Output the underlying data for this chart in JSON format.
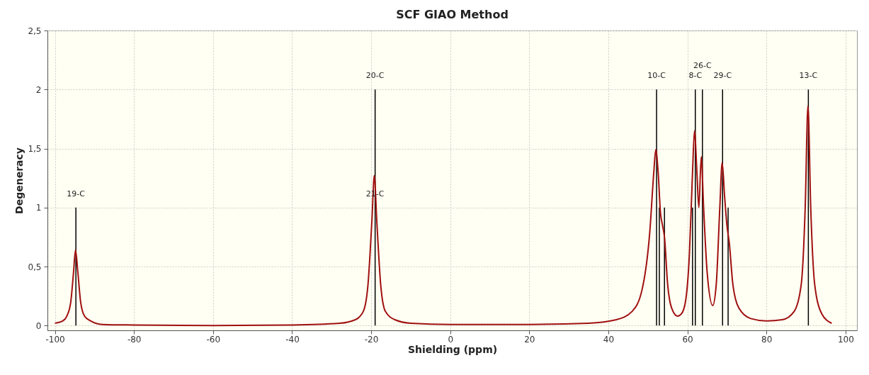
{
  "chart_data": {
    "type": "line",
    "title": "SCF GIAO Method",
    "xlabel": "Shielding (ppm)",
    "ylabel": "Degeneracy",
    "xlim": [
      -101,
      102
    ],
    "ylim": [
      -0.04,
      2.5
    ],
    "xticks": [
      -100,
      -80,
      -60,
      -40,
      -20,
      0,
      20,
      40,
      60,
      80,
      100
    ],
    "yticks": [
      0,
      {
        "value": 0.5,
        "label": "0,5"
      },
      1,
      {
        "value": 1.5,
        "label": "1,5"
      },
      2,
      {
        "value": 2.5,
        "label": "2,5"
      }
    ],
    "grid": true,
    "series": [
      {
        "type": "bar",
        "color": "#000000",
        "x": [
          -94.7,
          -19.0,
          52.2,
          52.9,
          54.2,
          61.3,
          62.0,
          63.8,
          68.9,
          70.3,
          90.6
        ],
        "values": [
          1,
          2,
          2,
          1,
          1,
          1,
          2,
          2,
          2,
          1,
          2
        ]
      },
      {
        "color": "#a01010",
        "x": [
          -100,
          -98,
          -97,
          -96,
          -95.3,
          -94.8,
          -94.2,
          -93.5,
          -92.5,
          -91,
          -88,
          -80,
          -60,
          -40,
          -28,
          -24,
          -22,
          -20.8,
          -19.8,
          -19.2,
          -18.6,
          -17.6,
          -16.4,
          -14,
          -10,
          0,
          20,
          35,
          42,
          46,
          48.5,
          50.5,
          51.5,
          52.0,
          52.6,
          53.2,
          53.7,
          54.2,
          55,
          56,
          57.5,
          58.5,
          59.5,
          60.5,
          61.3,
          61.8,
          62.4,
          62.9,
          63.5,
          64.1,
          65,
          66.4,
          67.3,
          68.2,
          68.8,
          69.4,
          70.0,
          70.6,
          71.5,
          73,
          76,
          80,
          84,
          87,
          88.8,
          89.8,
          90.5,
          91.2,
          92.2,
          94,
          96.5
        ],
        "values": [
          0.02,
          0.04,
          0.08,
          0.2,
          0.45,
          0.64,
          0.45,
          0.2,
          0.08,
          0.04,
          0.01,
          0.005,
          0,
          0.005,
          0.02,
          0.05,
          0.12,
          0.35,
          0.9,
          1.27,
          0.9,
          0.35,
          0.12,
          0.05,
          0.02,
          0.01,
          0.01,
          0.02,
          0.05,
          0.12,
          0.3,
          0.8,
          1.3,
          1.49,
          1.3,
          0.95,
          0.85,
          0.75,
          0.35,
          0.15,
          0.08,
          0.1,
          0.2,
          0.6,
          1.3,
          1.65,
          1.3,
          1.0,
          1.43,
          1.0,
          0.45,
          0.17,
          0.35,
          1.0,
          1.38,
          1.1,
          0.85,
          0.7,
          0.35,
          0.15,
          0.06,
          0.04,
          0.05,
          0.12,
          0.35,
          1.0,
          1.86,
          1.0,
          0.35,
          0.1,
          0.02
        ]
      }
    ],
    "annotations": [
      {
        "text": "19-C",
        "x": -94.7,
        "y": 1
      },
      {
        "text": "20-C",
        "x": -19.0,
        "y": 2
      },
      {
        "text": "21-C",
        "x": -19.0,
        "y": 1
      },
      {
        "text": "10-C",
        "x": 52.2,
        "y": 2
      },
      {
        "text": "8-C",
        "x": 62.0,
        "y": 2
      },
      {
        "text": "26-C",
        "x": 63.8,
        "y": 2
      },
      {
        "text": "29-C",
        "x": 68.9,
        "y": 2
      },
      {
        "text": "13-C",
        "x": 90.6,
        "y": 2
      }
    ]
  }
}
